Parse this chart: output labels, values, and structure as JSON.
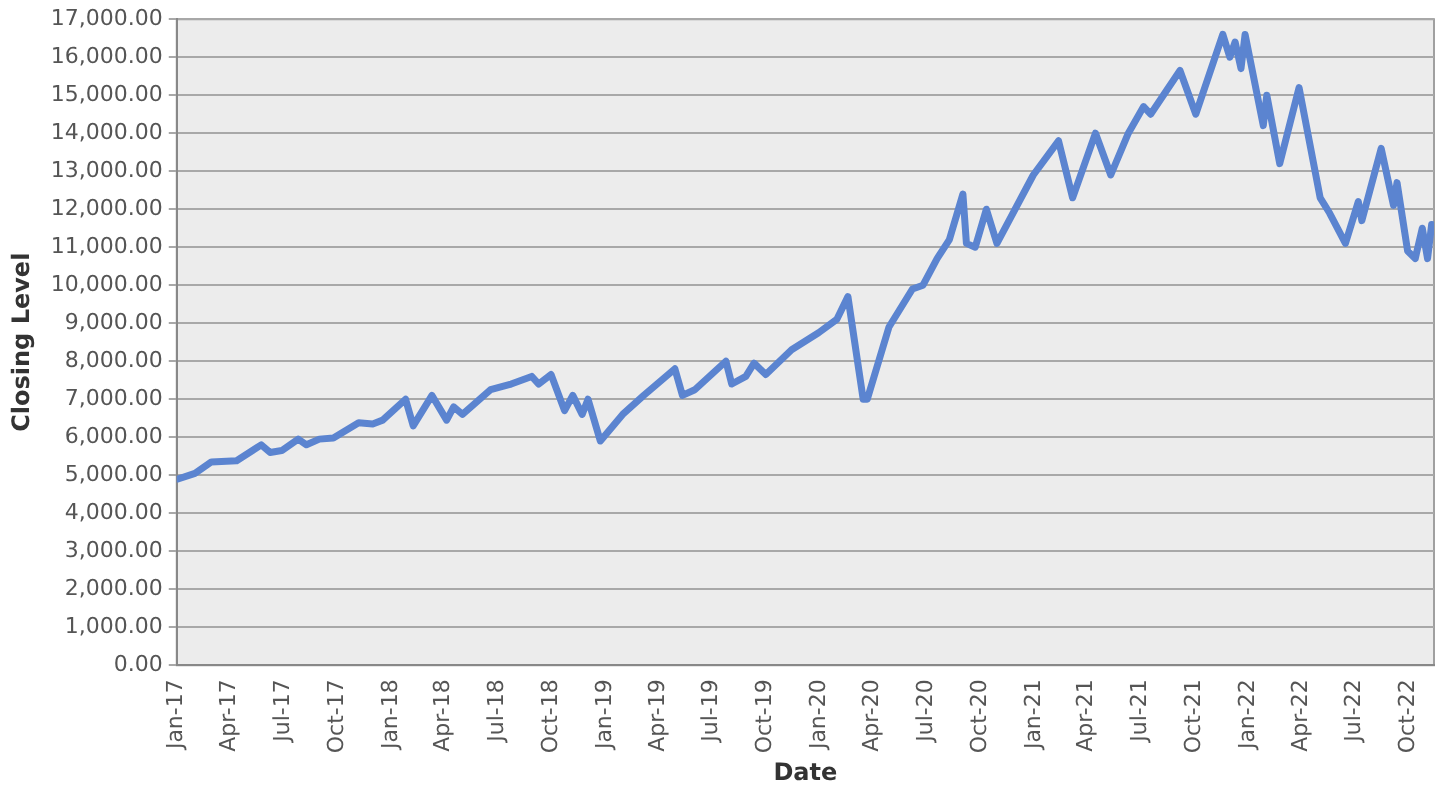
{
  "chart_data": {
    "type": "line",
    "xlabel": "Date",
    "ylabel": "Closing Level",
    "grid": "y",
    "legend": false,
    "marker": "none",
    "line_style": "solid",
    "x": [
      "2017-01-03",
      "2017-02-01",
      "2017-03-01",
      "2017-04-13",
      "2017-05-25",
      "2017-06-09",
      "2017-06-29",
      "2017-07-27",
      "2017-08-10",
      "2017-09-01",
      "2017-09-25",
      "2017-11-07",
      "2017-12-01",
      "2017-12-18",
      "2018-01-26",
      "2018-02-08",
      "2018-03-12",
      "2018-04-06",
      "2018-04-18",
      "2018-05-03",
      "2018-06-20",
      "2018-07-25",
      "2018-08-29",
      "2018-09-10",
      "2018-10-01",
      "2018-10-24",
      "2018-11-07",
      "2018-11-23",
      "2018-12-03",
      "2018-12-24",
      "2019-01-31",
      "2019-03-08",
      "2019-04-30",
      "2019-05-13",
      "2019-06-03",
      "2019-07-26",
      "2019-08-05",
      "2019-08-29",
      "2019-09-12",
      "2019-10-02",
      "2019-11-15",
      "2019-12-31",
      "2020-01-31",
      "2020-02-19",
      "2020-03-16",
      "2020-03-23",
      "2020-04-29",
      "2020-06-08",
      "2020-06-26",
      "2020-07-20",
      "2020-08-10",
      "2020-09-02",
      "2020-09-08",
      "2020-09-23",
      "2020-10-12",
      "2020-10-30",
      "2020-12-31",
      "2021-02-12",
      "2021-03-08",
      "2021-04-16",
      "2021-05-12",
      "2021-06-11",
      "2021-07-07",
      "2021-07-19",
      "2021-09-07",
      "2021-10-04",
      "2021-11-19",
      "2021-12-01",
      "2021-12-10",
      "2021-12-20",
      "2021-12-27",
      "2022-01-27",
      "2022-02-02",
      "2022-02-24",
      "2022-03-29",
      "2022-05-04",
      "2022-05-20",
      "2022-06-16",
      "2022-07-08",
      "2022-07-14",
      "2022-08-16",
      "2022-09-06",
      "2022-09-12",
      "2022-09-30",
      "2022-10-13",
      "2022-10-25",
      "2022-11-03",
      "2022-11-10"
    ],
    "values": [
      4900,
      5050,
      5350,
      5380,
      5800,
      5600,
      5650,
      5950,
      5800,
      5950,
      5980,
      6380,
      6350,
      6450,
      7000,
      6300,
      7100,
      6450,
      6800,
      6600,
      7250,
      7400,
      7600,
      7400,
      7650,
      6700,
      7100,
      6600,
      7000,
      5900,
      6600,
      7100,
      7800,
      7100,
      7250,
      8000,
      7400,
      7600,
      7950,
      7650,
      8300,
      8750,
      9100,
      9700,
      7000,
      7000,
      8900,
      9900,
      10000,
      10700,
      11200,
      12400,
      11100,
      11000,
      12000,
      11100,
      12900,
      13800,
      12300,
      14000,
      12900,
      14000,
      14700,
      14500,
      15650,
      14500,
      16600,
      16000,
      16400,
      15700,
      16600,
      14200,
      15000,
      13200,
      15200,
      12300,
      11900,
      11100,
      12200,
      11700,
      13600,
      12100,
      12700,
      10900,
      10700,
      11500,
      10700,
      11600
    ],
    "color": "#5b84d0",
    "xlim": [
      "2017-01-01",
      "2022-11-14"
    ],
    "xticks": [
      {
        "value": "2017-01-01",
        "label": "Jan-17"
      },
      {
        "value": "2017-04-01",
        "label": "Apr-17"
      },
      {
        "value": "2017-07-01",
        "label": "Jul-17"
      },
      {
        "value": "2017-10-01",
        "label": "Oct-17"
      },
      {
        "value": "2018-01-01",
        "label": "Jan-18"
      },
      {
        "value": "2018-04-01",
        "label": "Apr-18"
      },
      {
        "value": "2018-07-01",
        "label": "Jul-18"
      },
      {
        "value": "2018-10-01",
        "label": "Oct-18"
      },
      {
        "value": "2019-01-01",
        "label": "Jan-19"
      },
      {
        "value": "2019-04-01",
        "label": "Apr-19"
      },
      {
        "value": "2019-07-01",
        "label": "Jul-19"
      },
      {
        "value": "2019-10-01",
        "label": "Oct-19"
      },
      {
        "value": "2020-01-01",
        "label": "Jan-20"
      },
      {
        "value": "2020-04-01",
        "label": "Apr-20"
      },
      {
        "value": "2020-07-01",
        "label": "Jul-20"
      },
      {
        "value": "2020-10-01",
        "label": "Oct-20"
      },
      {
        "value": "2021-01-01",
        "label": "Jan-21"
      },
      {
        "value": "2021-04-01",
        "label": "Apr-21"
      },
      {
        "value": "2021-07-01",
        "label": "Jul-21"
      },
      {
        "value": "2021-10-01",
        "label": "Oct-21"
      },
      {
        "value": "2022-01-01",
        "label": "Jan-22"
      },
      {
        "value": "2022-04-01",
        "label": "Apr-22"
      },
      {
        "value": "2022-07-01",
        "label": "Jul-22"
      },
      {
        "value": "2022-10-01",
        "label": "Oct-22"
      }
    ],
    "ylim": [
      0,
      17000
    ],
    "yticks": [
      {
        "value": 0,
        "label": "0.00"
      },
      {
        "value": 1000,
        "label": "1,000.00"
      },
      {
        "value": 2000,
        "label": "2,000.00"
      },
      {
        "value": 3000,
        "label": "3,000.00"
      },
      {
        "value": 4000,
        "label": "4,000.00"
      },
      {
        "value": 5000,
        "label": "5,000.00"
      },
      {
        "value": 6000,
        "label": "6,000.00"
      },
      {
        "value": 7000,
        "label": "7,000.00"
      },
      {
        "value": 8000,
        "label": "8,000.00"
      },
      {
        "value": 9000,
        "label": "9,000.00"
      },
      {
        "value": 10000,
        "label": "10,000.00"
      },
      {
        "value": 11000,
        "label": "11,000.00"
      },
      {
        "value": 12000,
        "label": "12,000.00"
      },
      {
        "value": 13000,
        "label": "13,000.00"
      },
      {
        "value": 14000,
        "label": "14,000.00"
      },
      {
        "value": 15000,
        "label": "15,000.00"
      },
      {
        "value": 16000,
        "label": "16,000.00"
      },
      {
        "value": 17000,
        "label": "17,000.00"
      }
    ]
  }
}
